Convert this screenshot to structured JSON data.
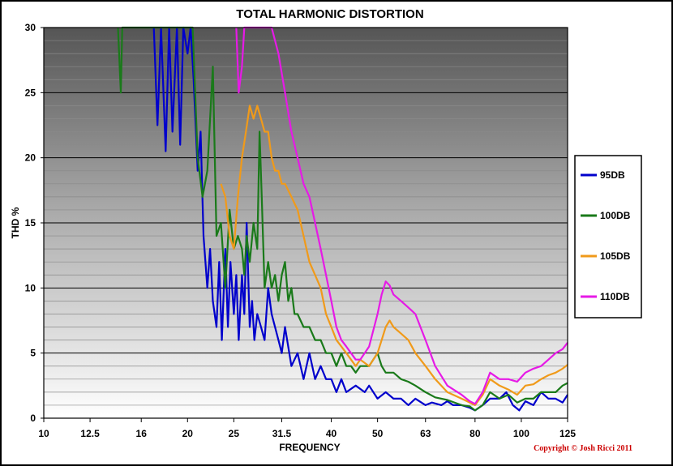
{
  "chart_data": {
    "type": "line",
    "title": "TOTAL HARMONIC DISTORTION",
    "xlabel": "FREQUENCY",
    "ylabel": "THD %",
    "x_ticks": [
      "10",
      "12.5",
      "16",
      "20",
      "25",
      "31.5",
      "40",
      "50",
      "63",
      "80",
      "100",
      "125"
    ],
    "y_ticks": [
      0,
      5,
      10,
      15,
      20,
      25,
      30
    ],
    "ylim": [
      0,
      30
    ],
    "xlim": [
      10,
      125
    ],
    "x_scale": "log",
    "grid": true,
    "legend_position": "right",
    "copyright": "Copyright © Josh Ricci 2011",
    "series": [
      {
        "name": "95DB",
        "color": "#0000cc",
        "points": [
          [
            17,
            30
          ],
          [
            17.3,
            22.5
          ],
          [
            17.6,
            30
          ],
          [
            18,
            20.5
          ],
          [
            18.3,
            30
          ],
          [
            18.6,
            22
          ],
          [
            19,
            30
          ],
          [
            19.3,
            21
          ],
          [
            19.6,
            30
          ],
          [
            20,
            28
          ],
          [
            20.3,
            30
          ],
          [
            20.6,
            26
          ],
          [
            21,
            19
          ],
          [
            21.3,
            22
          ],
          [
            21.6,
            14
          ],
          [
            22,
            10
          ],
          [
            22.3,
            13
          ],
          [
            22.6,
            9
          ],
          [
            23,
            7
          ],
          [
            23.3,
            12
          ],
          [
            23.6,
            6
          ],
          [
            24,
            13
          ],
          [
            24.3,
            7
          ],
          [
            24.6,
            12
          ],
          [
            25,
            8
          ],
          [
            25.3,
            11
          ],
          [
            25.6,
            6
          ],
          [
            26,
            11
          ],
          [
            26.3,
            8
          ],
          [
            26.6,
            15
          ],
          [
            27,
            7
          ],
          [
            27.3,
            9
          ],
          [
            27.6,
            6
          ],
          [
            28,
            8
          ],
          [
            28.5,
            7
          ],
          [
            29,
            6
          ],
          [
            29.5,
            10
          ],
          [
            30,
            8
          ],
          [
            31,
            6
          ],
          [
            31.5,
            5
          ],
          [
            32,
            7
          ],
          [
            33,
            4
          ],
          [
            34,
            5
          ],
          [
            35,
            3
          ],
          [
            36,
            5
          ],
          [
            37,
            3
          ],
          [
            38,
            4
          ],
          [
            39,
            3
          ],
          [
            40,
            3
          ],
          [
            41,
            2
          ],
          [
            42,
            3
          ],
          [
            43,
            2
          ],
          [
            45,
            2.5
          ],
          [
            47,
            2
          ],
          [
            48,
            2.5
          ],
          [
            50,
            1.5
          ],
          [
            52,
            2
          ],
          [
            54,
            1.5
          ],
          [
            56,
            1.5
          ],
          [
            58,
            1
          ],
          [
            60,
            1.5
          ],
          [
            63,
            1
          ],
          [
            65,
            1.2
          ],
          [
            68,
            1
          ],
          [
            70,
            1.3
          ],
          [
            72,
            1
          ],
          [
            75,
            1
          ],
          [
            78,
            0.8
          ],
          [
            80,
            0.6
          ],
          [
            83,
            1
          ],
          [
            86,
            1.5
          ],
          [
            90,
            1.5
          ],
          [
            93,
            2
          ],
          [
            96,
            1
          ],
          [
            99,
            0.6
          ],
          [
            102,
            1.3
          ],
          [
            106,
            1
          ],
          [
            110,
            2
          ],
          [
            114,
            1.5
          ],
          [
            118,
            1.5
          ],
          [
            122,
            1.2
          ],
          [
            125,
            1.8
          ]
        ]
      },
      {
        "name": "100DB",
        "color": "#1a7a1a",
        "points": [
          [
            14.3,
            30
          ],
          [
            14.5,
            25
          ],
          [
            14.6,
            30
          ],
          [
            20.5,
            30
          ],
          [
            21,
            20
          ],
          [
            21.5,
            17
          ],
          [
            22,
            19
          ],
          [
            22.3,
            23
          ],
          [
            22.6,
            27
          ],
          [
            23,
            14
          ],
          [
            23.5,
            15
          ],
          [
            24,
            10
          ],
          [
            24.5,
            16
          ],
          [
            25,
            13
          ],
          [
            25.5,
            14
          ],
          [
            26,
            13
          ],
          [
            26.3,
            11
          ],
          [
            26.6,
            14
          ],
          [
            27,
            12
          ],
          [
            27.5,
            15
          ],
          [
            28,
            13
          ],
          [
            28.3,
            22
          ],
          [
            28.6,
            17
          ],
          [
            29,
            10
          ],
          [
            29.5,
            12
          ],
          [
            30,
            10
          ],
          [
            30.5,
            11
          ],
          [
            31,
            9
          ],
          [
            31.5,
            11
          ],
          [
            32,
            12
          ],
          [
            32.5,
            9
          ],
          [
            33,
            10
          ],
          [
            33.5,
            8
          ],
          [
            34,
            8
          ],
          [
            35,
            7
          ],
          [
            36,
            7
          ],
          [
            37,
            6
          ],
          [
            38,
            6
          ],
          [
            39,
            5
          ],
          [
            40,
            5
          ],
          [
            41,
            4
          ],
          [
            42,
            5
          ],
          [
            43,
            4
          ],
          [
            44,
            4
          ],
          [
            45,
            3.5
          ],
          [
            46,
            4
          ],
          [
            48,
            4
          ],
          [
            50,
            5
          ],
          [
            51,
            4
          ],
          [
            52,
            3.5
          ],
          [
            54,
            3.5
          ],
          [
            56,
            3
          ],
          [
            58,
            2.8
          ],
          [
            60,
            2.5
          ],
          [
            63,
            2
          ],
          [
            66,
            1.6
          ],
          [
            70,
            1.4
          ],
          [
            75,
            1
          ],
          [
            78,
            0.9
          ],
          [
            80,
            0.6
          ],
          [
            83,
            1
          ],
          [
            86,
            2
          ],
          [
            90,
            1.5
          ],
          [
            94,
            1.8
          ],
          [
            98,
            1.2
          ],
          [
            102,
            1.5
          ],
          [
            106,
            1.5
          ],
          [
            110,
            2
          ],
          [
            114,
            2
          ],
          [
            118,
            2
          ],
          [
            122,
            2.5
          ],
          [
            125,
            2.7
          ]
        ]
      },
      {
        "name": "105DB",
        "color": "#f09a1a",
        "points": [
          [
            23.5,
            18
          ],
          [
            24,
            17
          ],
          [
            24.5,
            14
          ],
          [
            25,
            13
          ],
          [
            25.5,
            17
          ],
          [
            26,
            20
          ],
          [
            26.5,
            22
          ],
          [
            27,
            24
          ],
          [
            27.5,
            23
          ],
          [
            28,
            24
          ],
          [
            28.5,
            23
          ],
          [
            29,
            22
          ],
          [
            29.5,
            22
          ],
          [
            30,
            20
          ],
          [
            30.5,
            19
          ],
          [
            31,
            19
          ],
          [
            31.5,
            18
          ],
          [
            32,
            18
          ],
          [
            33,
            17
          ],
          [
            34,
            16
          ],
          [
            35,
            14
          ],
          [
            36,
            12
          ],
          [
            37,
            11
          ],
          [
            38,
            10
          ],
          [
            39,
            8
          ],
          [
            40,
            7
          ],
          [
            41,
            6
          ],
          [
            42,
            5.5
          ],
          [
            43,
            5
          ],
          [
            44,
            4.5
          ],
          [
            45,
            4
          ],
          [
            46,
            4.5
          ],
          [
            48,
            4
          ],
          [
            50,
            5
          ],
          [
            51,
            6
          ],
          [
            52,
            7
          ],
          [
            53,
            7.5
          ],
          [
            54,
            7
          ],
          [
            56,
            6.5
          ],
          [
            58,
            6
          ],
          [
            60,
            5
          ],
          [
            63,
            4
          ],
          [
            66,
            3
          ],
          [
            70,
            2
          ],
          [
            75,
            1.5
          ],
          [
            78,
            1.2
          ],
          [
            80,
            1
          ],
          [
            83,
            1.8
          ],
          [
            86,
            3
          ],
          [
            90,
            2.5
          ],
          [
            94,
            2.2
          ],
          [
            98,
            1.8
          ],
          [
            102,
            2.5
          ],
          [
            106,
            2.6
          ],
          [
            110,
            3
          ],
          [
            114,
            3.3
          ],
          [
            118,
            3.5
          ],
          [
            122,
            3.8
          ],
          [
            125,
            4.1
          ]
        ]
      },
      {
        "name": "110DB",
        "color": "#e61ae6",
        "points": [
          [
            25.3,
            30
          ],
          [
            25.6,
            25
          ],
          [
            26,
            27
          ],
          [
            26.3,
            30
          ],
          [
            30,
            30
          ],
          [
            31,
            28
          ],
          [
            32,
            25
          ],
          [
            33,
            22
          ],
          [
            34,
            20
          ],
          [
            35,
            18
          ],
          [
            36,
            17
          ],
          [
            37,
            15
          ],
          [
            38,
            13
          ],
          [
            39,
            11
          ],
          [
            40,
            9
          ],
          [
            41,
            7
          ],
          [
            42,
            6
          ],
          [
            43,
            5.5
          ],
          [
            44,
            5
          ],
          [
            45,
            4.5
          ],
          [
            46,
            4.5
          ],
          [
            48,
            5.5
          ],
          [
            50,
            8
          ],
          [
            51,
            9.5
          ],
          [
            52,
            10.5
          ],
          [
            53,
            10.2
          ],
          [
            54,
            9.5
          ],
          [
            56,
            9
          ],
          [
            58,
            8.5
          ],
          [
            60,
            8
          ],
          [
            63,
            6
          ],
          [
            66,
            4
          ],
          [
            70,
            2.5
          ],
          [
            75,
            1.8
          ],
          [
            78,
            1.3
          ],
          [
            80,
            1.1
          ],
          [
            83,
            2
          ],
          [
            86,
            3.5
          ],
          [
            90,
            3
          ],
          [
            94,
            3
          ],
          [
            98,
            2.8
          ],
          [
            102,
            3.5
          ],
          [
            106,
            3.8
          ],
          [
            110,
            4
          ],
          [
            114,
            4.5
          ],
          [
            118,
            5
          ],
          [
            122,
            5.3
          ],
          [
            125,
            5.8
          ]
        ]
      }
    ]
  }
}
